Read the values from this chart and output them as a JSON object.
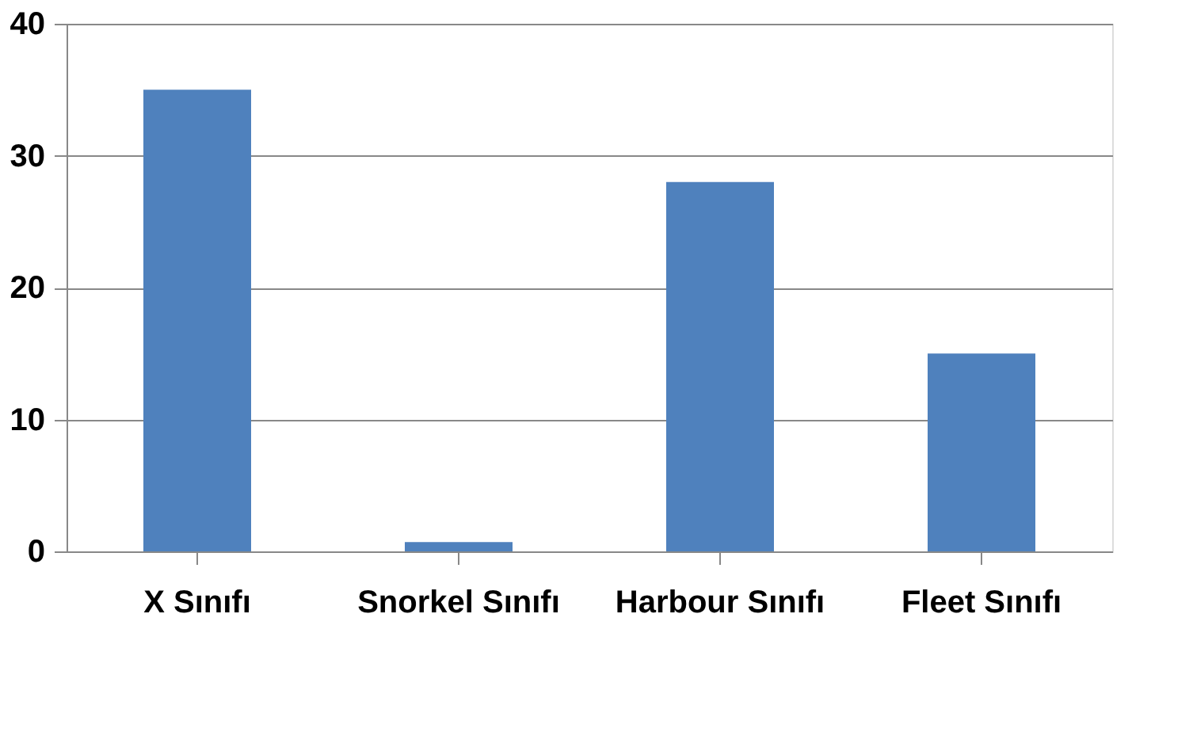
{
  "chart_data": {
    "type": "bar",
    "categories": [
      "X Sınıfı",
      "Snorkel Sınıfı",
      "Harbour Sınıfı",
      "Fleet Sınıfı"
    ],
    "values": [
      35,
      0.7,
      28,
      15
    ],
    "color": "#4f81bd",
    "ylim": [
      0,
      40
    ],
    "yticks": [
      0,
      10,
      20,
      30,
      40
    ],
    "grid": "y"
  }
}
